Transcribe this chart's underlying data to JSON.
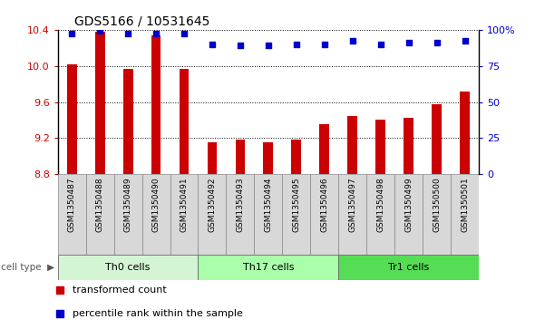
{
  "title": "GDS5166 / 10531645",
  "samples": [
    "GSM1350487",
    "GSM1350488",
    "GSM1350489",
    "GSM1350490",
    "GSM1350491",
    "GSM1350492",
    "GSM1350493",
    "GSM1350494",
    "GSM1350495",
    "GSM1350496",
    "GSM1350497",
    "GSM1350498",
    "GSM1350499",
    "GSM1350500",
    "GSM1350501"
  ],
  "bar_values": [
    10.02,
    10.38,
    9.97,
    10.34,
    9.97,
    9.15,
    9.18,
    9.15,
    9.18,
    9.35,
    9.45,
    9.4,
    9.43,
    9.58,
    9.72
  ],
  "pct_values": [
    97,
    99,
    97,
    97,
    97,
    90,
    89,
    89,
    90,
    90,
    92,
    90,
    91,
    91,
    92
  ],
  "bar_color": "#cc0000",
  "pct_color": "#0000cc",
  "ylim_left": [
    8.8,
    10.4
  ],
  "ylim_right": [
    0,
    100
  ],
  "yticks_left": [
    8.8,
    9.2,
    9.6,
    10.0,
    10.4
  ],
  "yticks_right": [
    0,
    25,
    50,
    75,
    100
  ],
  "cell_groups": [
    {
      "label": "Th0 cells",
      "start": 0,
      "end": 5,
      "color": "#d4f5d4"
    },
    {
      "label": "Th17 cells",
      "start": 5,
      "end": 10,
      "color": "#aaffaa"
    },
    {
      "label": "Tr1 cells",
      "start": 10,
      "end": 15,
      "color": "#55dd55"
    }
  ],
  "cell_type_label": "cell type",
  "legend_items": [
    {
      "label": "transformed count",
      "color": "#cc0000",
      "marker": "s"
    },
    {
      "label": "percentile rank within the sample",
      "color": "#0000cc",
      "marker": "s"
    }
  ]
}
